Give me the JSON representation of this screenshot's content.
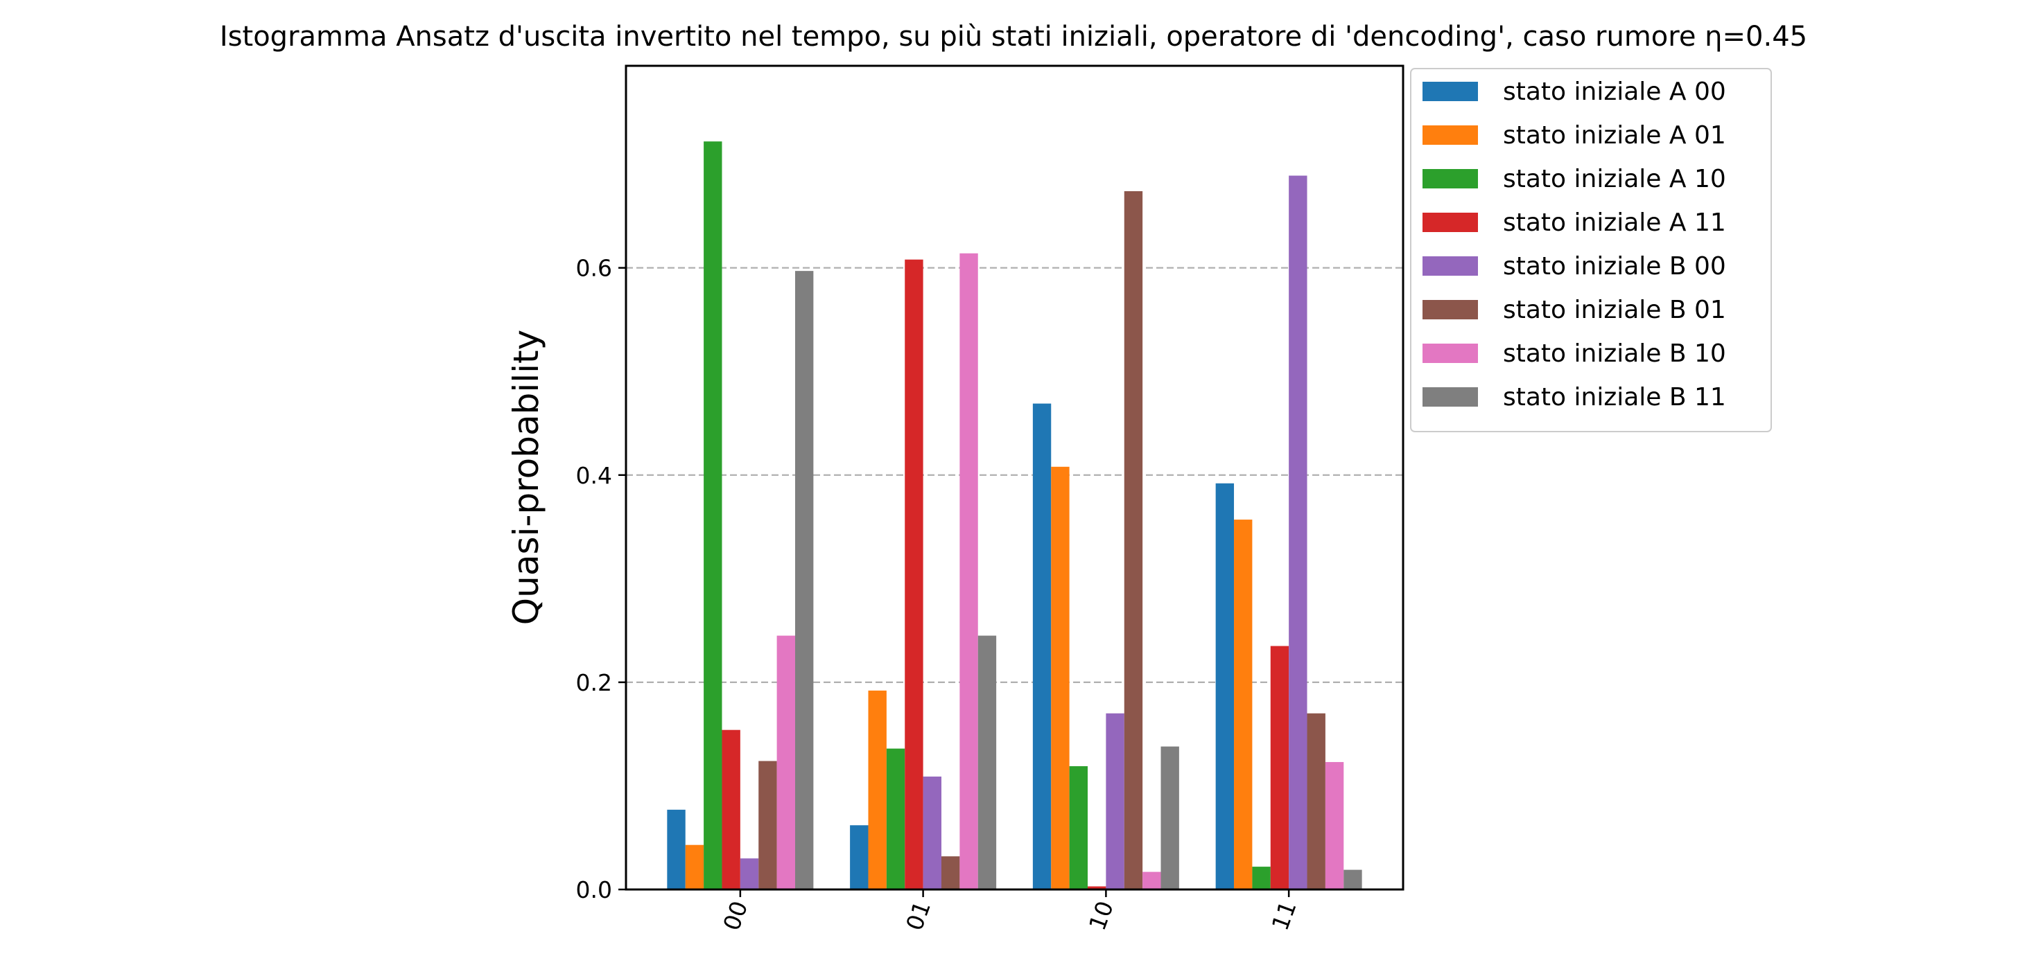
{
  "chart_data": {
    "type": "bar",
    "title": "Istogramma Ansatz d'uscita invertito nel tempo, su più stati iniziali, operatore di 'dencoding', caso rumore η=0.45",
    "xlabel": "",
    "ylabel": "Quasi-probability",
    "categories": [
      "00",
      "01",
      "10",
      "11"
    ],
    "ylim": [
      0,
      0.795
    ],
    "yticks": [
      "0.0",
      "0.2",
      "0.4",
      "0.6"
    ],
    "grid": "y-dashed",
    "legend_position": "outside-top-right",
    "series": [
      {
        "name": "stato iniziale A 00",
        "color": "#1f77b4",
        "values": [
          0.077,
          0.062,
          0.469,
          0.392
        ]
      },
      {
        "name": "stato iniziale A 01",
        "color": "#ff7f0e",
        "values": [
          0.043,
          0.192,
          0.408,
          0.357
        ]
      },
      {
        "name": "stato iniziale A 10",
        "color": "#2ca02c",
        "values": [
          0.722,
          0.136,
          0.119,
          0.022
        ]
      },
      {
        "name": "stato iniziale A 11",
        "color": "#d62728",
        "values": [
          0.154,
          0.608,
          0.003,
          0.235
        ]
      },
      {
        "name": "stato iniziale B 00",
        "color": "#9467bd",
        "values": [
          0.03,
          0.109,
          0.17,
          0.689
        ]
      },
      {
        "name": "stato iniziale B 01",
        "color": "#8c564b",
        "values": [
          0.124,
          0.032,
          0.674,
          0.17
        ]
      },
      {
        "name": "stato iniziale B 10",
        "color": "#e377c2",
        "values": [
          0.245,
          0.614,
          0.017,
          0.123
        ]
      },
      {
        "name": "stato iniziale B 11",
        "color": "#7f7f7f",
        "values": [
          0.597,
          0.245,
          0.138,
          0.019
        ]
      }
    ]
  }
}
